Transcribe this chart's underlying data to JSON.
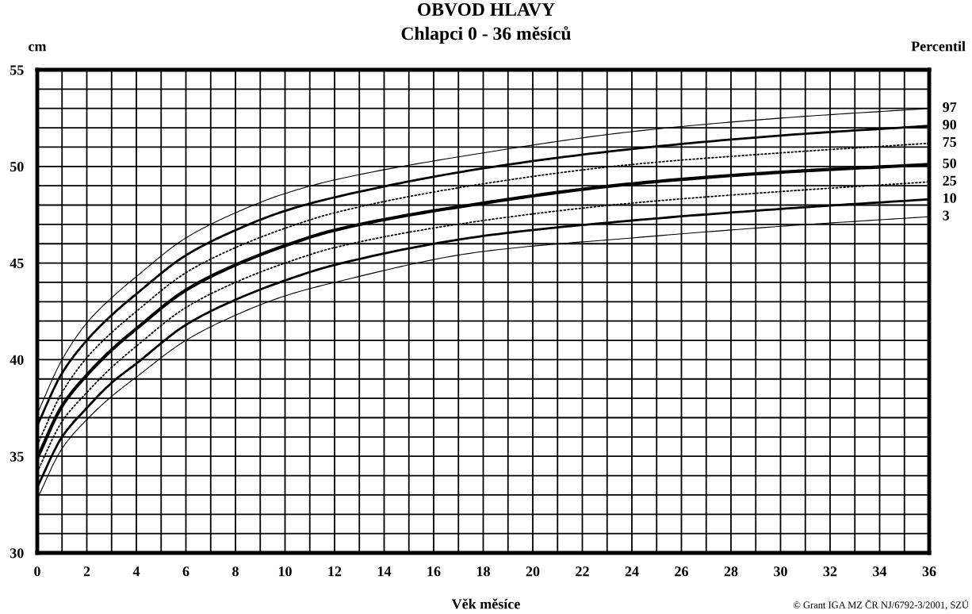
{
  "chart_data": {
    "type": "line",
    "title": "OBVOD HLAVY",
    "subtitle": "Chlapci 0 - 36 měsíců",
    "xlabel": "Věk měsíce",
    "ylabel": "cm",
    "legend_title": "Percentil",
    "annotations": [
      "© Grant IGA MZ ČR NJ/6792-3/2001, SZÚ"
    ],
    "x": [
      0,
      1,
      2,
      3,
      4,
      6,
      8,
      10,
      12,
      18,
      24,
      30,
      36
    ],
    "series": [
      {
        "name": "97",
        "color": "#000000",
        "line_style": "solid",
        "values": [
          37.2,
          40.0,
          41.9,
          43.2,
          44.3,
          46.3,
          47.6,
          48.6,
          49.3,
          50.7,
          51.8,
          52.5,
          53.0
        ]
      },
      {
        "name": "90",
        "color": "#000000",
        "line_style": "solid",
        "values": [
          36.6,
          39.3,
          41.0,
          42.3,
          43.4,
          45.4,
          46.7,
          47.7,
          48.4,
          49.9,
          50.9,
          51.6,
          52.1
        ]
      },
      {
        "name": "75",
        "color": "#000000",
        "line_style": "dotted",
        "values": [
          35.6,
          38.3,
          40.1,
          41.4,
          42.5,
          44.5,
          45.8,
          46.8,
          47.6,
          49.1,
          50.1,
          50.7,
          51.2
        ]
      },
      {
        "name": "50",
        "color": "#000000",
        "line_style": "solid",
        "values": [
          34.9,
          37.6,
          39.2,
          40.5,
          41.6,
          43.6,
          44.9,
          45.9,
          46.7,
          48.1,
          49.1,
          49.7,
          50.1
        ]
      },
      {
        "name": "25",
        "color": "#000000",
        "line_style": "dotted",
        "values": [
          34.2,
          36.8,
          38.3,
          39.6,
          40.7,
          42.7,
          44.0,
          45.0,
          45.8,
          47.2,
          48.1,
          48.7,
          49.2
        ]
      },
      {
        "name": "10",
        "color": "#000000",
        "line_style": "solid",
        "values": [
          33.4,
          36.0,
          37.5,
          38.8,
          39.8,
          41.8,
          43.1,
          44.1,
          44.9,
          46.4,
          47.2,
          47.8,
          48.3
        ]
      },
      {
        "name": "3",
        "color": "#000000",
        "line_style": "solid",
        "values": [
          32.8,
          35.4,
          36.9,
          38.1,
          39.1,
          41.0,
          42.3,
          43.3,
          44.0,
          45.6,
          46.3,
          46.9,
          47.4
        ]
      }
    ],
    "xlim": [
      0,
      36
    ],
    "xticks": [
      0,
      2,
      4,
      6,
      8,
      10,
      12,
      14,
      16,
      18,
      20,
      22,
      24,
      26,
      28,
      30,
      32,
      34,
      36
    ],
    "ylim": [
      30,
      55
    ],
    "yticks": [
      30,
      35,
      40,
      45,
      50,
      55
    ],
    "grid": true,
    "marker": "none"
  }
}
